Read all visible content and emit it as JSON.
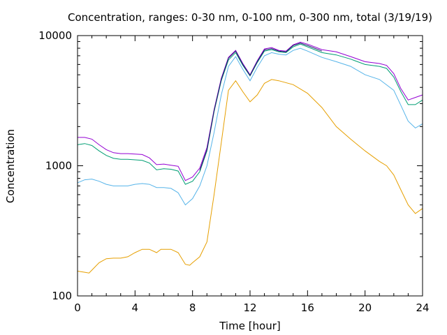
{
  "chart_data": {
    "type": "line",
    "title": "Concentration, ranges: 0-30 nm, 0-100 nm, 0-300 nm, total (3/19/19)",
    "xlabel": "Time [hour]",
    "ylabel": "Concentration",
    "xlim": [
      0,
      24
    ],
    "ylim": [
      100,
      10000
    ],
    "yscale": "log",
    "grid": false,
    "legend": "none",
    "x_ticks": [
      0,
      4,
      8,
      12,
      16,
      20,
      24
    ],
    "y_ticks": [
      100,
      1000,
      10000
    ],
    "series": [
      {
        "color": "#e69f00",
        "points": [
          [
            0,
            155
          ],
          [
            0.5,
            152
          ],
          [
            0.8,
            150
          ],
          [
            1,
            158
          ],
          [
            1.5,
            180
          ],
          [
            2,
            193
          ],
          [
            2.5,
            195
          ],
          [
            3,
            195
          ],
          [
            3.5,
            200
          ],
          [
            4,
            215
          ],
          [
            4.5,
            228
          ],
          [
            5,
            228
          ],
          [
            5.5,
            215
          ],
          [
            5.8,
            228
          ],
          [
            6.5,
            228
          ],
          [
            7,
            215
          ],
          [
            7.5,
            175
          ],
          [
            7.8,
            172
          ],
          [
            8,
            180
          ],
          [
            8.5,
            200
          ],
          [
            9,
            260
          ],
          [
            9.5,
            600
          ],
          [
            10,
            1500
          ],
          [
            10.5,
            3800
          ],
          [
            11,
            4500
          ],
          [
            11.5,
            3700
          ],
          [
            12,
            3100
          ],
          [
            12.5,
            3500
          ],
          [
            13,
            4300
          ],
          [
            13.5,
            4600
          ],
          [
            14,
            4500
          ],
          [
            15,
            4200
          ],
          [
            16,
            3600
          ],
          [
            17,
            2800
          ],
          [
            18,
            2000
          ],
          [
            19,
            1600
          ],
          [
            20,
            1300
          ],
          [
            21,
            1080
          ],
          [
            21.5,
            1000
          ],
          [
            22,
            850
          ],
          [
            22.5,
            650
          ],
          [
            23,
            500
          ],
          [
            23.5,
            430
          ],
          [
            24,
            470
          ]
        ]
      },
      {
        "color": "#56b4e9",
        "points": [
          [
            0,
            740
          ],
          [
            0.5,
            780
          ],
          [
            1,
            790
          ],
          [
            1.5,
            760
          ],
          [
            2,
            720
          ],
          [
            2.5,
            700
          ],
          [
            3,
            700
          ],
          [
            3.5,
            700
          ],
          [
            4,
            720
          ],
          [
            4.5,
            730
          ],
          [
            5,
            720
          ],
          [
            5.5,
            680
          ],
          [
            6,
            680
          ],
          [
            6.5,
            670
          ],
          [
            7,
            620
          ],
          [
            7.5,
            500
          ],
          [
            8,
            560
          ],
          [
            8.5,
            700
          ],
          [
            9,
            1000
          ],
          [
            9.5,
            1800
          ],
          [
            10,
            3500
          ],
          [
            10.5,
            5800
          ],
          [
            11,
            6900
          ],
          [
            11.5,
            5500
          ],
          [
            12,
            4500
          ],
          [
            12.5,
            5700
          ],
          [
            13,
            7000
          ],
          [
            13.5,
            7400
          ],
          [
            14,
            7200
          ],
          [
            14.5,
            7100
          ],
          [
            15,
            7700
          ],
          [
            15.5,
            8000
          ],
          [
            16,
            7600
          ],
          [
            17,
            6800
          ],
          [
            18,
            6300
          ],
          [
            19,
            5800
          ],
          [
            20,
            5000
          ],
          [
            21,
            4600
          ],
          [
            22,
            3800
          ],
          [
            22.5,
            2900
          ],
          [
            23,
            2200
          ],
          [
            23.5,
            1950
          ],
          [
            24,
            2100
          ]
        ]
      },
      {
        "color": "#009e73",
        "points": [
          [
            0,
            1450
          ],
          [
            0.5,
            1480
          ],
          [
            1,
            1430
          ],
          [
            1.5,
            1300
          ],
          [
            2,
            1200
          ],
          [
            2.5,
            1140
          ],
          [
            3,
            1120
          ],
          [
            3.5,
            1120
          ],
          [
            4,
            1110
          ],
          [
            4.5,
            1100
          ],
          [
            5,
            1050
          ],
          [
            5.5,
            930
          ],
          [
            6,
            950
          ],
          [
            6.5,
            940
          ],
          [
            7,
            910
          ],
          [
            7.5,
            720
          ],
          [
            8,
            760
          ],
          [
            8.5,
            900
          ],
          [
            9,
            1300
          ],
          [
            9.5,
            2600
          ],
          [
            10,
            4500
          ],
          [
            10.5,
            6500
          ],
          [
            11,
            7400
          ],
          [
            11.5,
            5900
          ],
          [
            12,
            4900
          ],
          [
            12.5,
            6200
          ],
          [
            13,
            7600
          ],
          [
            13.5,
            7800
          ],
          [
            14,
            7500
          ],
          [
            14.5,
            7400
          ],
          [
            15,
            8200
          ],
          [
            15.5,
            8600
          ],
          [
            16,
            8200
          ],
          [
            17,
            7400
          ],
          [
            18,
            7100
          ],
          [
            19,
            6600
          ],
          [
            20,
            6000
          ],
          [
            21,
            5800
          ],
          [
            21.5,
            5600
          ],
          [
            22,
            4800
          ],
          [
            22.5,
            3700
          ],
          [
            23,
            2950
          ],
          [
            23.5,
            2950
          ],
          [
            24,
            3200
          ]
        ]
      },
      {
        "color": "#9400d3",
        "points": [
          [
            0,
            1650
          ],
          [
            0.5,
            1650
          ],
          [
            1,
            1600
          ],
          [
            1.5,
            1450
          ],
          [
            2,
            1330
          ],
          [
            2.5,
            1260
          ],
          [
            3,
            1240
          ],
          [
            3.5,
            1240
          ],
          [
            4,
            1230
          ],
          [
            4.5,
            1220
          ],
          [
            5,
            1150
          ],
          [
            5.5,
            1020
          ],
          [
            6,
            1030
          ],
          [
            6.5,
            1010
          ],
          [
            7,
            990
          ],
          [
            7.5,
            770
          ],
          [
            8,
            820
          ],
          [
            8.5,
            960
          ],
          [
            9,
            1380
          ],
          [
            9.5,
            2700
          ],
          [
            10,
            4700
          ],
          [
            10.5,
            6800
          ],
          [
            11,
            7700
          ],
          [
            11.5,
            6100
          ],
          [
            12,
            5000
          ],
          [
            12.5,
            6400
          ],
          [
            13,
            7900
          ],
          [
            13.5,
            8100
          ],
          [
            14,
            7700
          ],
          [
            14.5,
            7600
          ],
          [
            15,
            8500
          ],
          [
            15.5,
            8900
          ],
          [
            16,
            8600
          ],
          [
            17,
            7800
          ],
          [
            18,
            7500
          ],
          [
            19,
            6900
          ],
          [
            20,
            6300
          ],
          [
            21,
            6100
          ],
          [
            21.5,
            5900
          ],
          [
            22,
            5100
          ],
          [
            22.5,
            3900
          ],
          [
            23,
            3200
          ],
          [
            23.5,
            3350
          ],
          [
            24,
            3500
          ]
        ]
      },
      {
        "color": "#1f1f6e",
        "points": [
          [
            8.5,
            920
          ],
          [
            9,
            1330
          ],
          [
            9.5,
            2650
          ],
          [
            10,
            4600
          ],
          [
            10.5,
            6700
          ],
          [
            11,
            7600
          ],
          [
            11.5,
            6000
          ],
          [
            12,
            4950
          ],
          [
            12.5,
            6300
          ],
          [
            13,
            7750
          ],
          [
            13.5,
            7950
          ],
          [
            14,
            7600
          ],
          [
            14.5,
            7500
          ],
          [
            15,
            8400
          ],
          [
            15.5,
            8750
          ],
          [
            16,
            8400
          ],
          [
            17,
            7600
          ]
        ]
      }
    ]
  }
}
